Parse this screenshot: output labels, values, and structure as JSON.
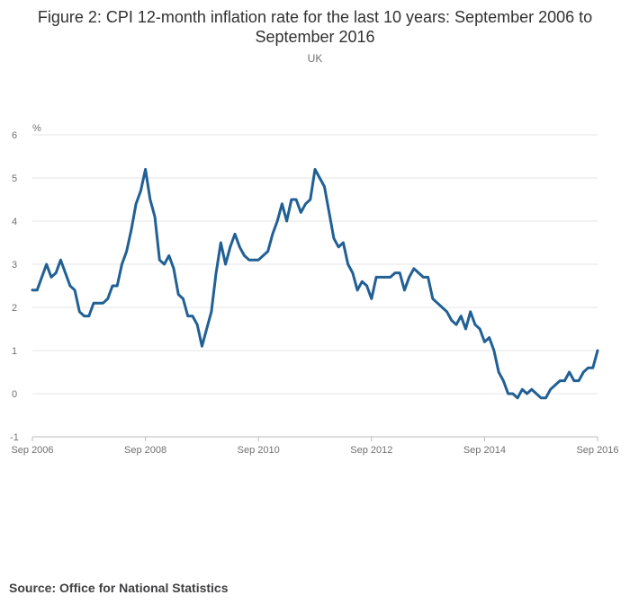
{
  "title": "Figure 2: CPI 12-month inflation rate for the last 10 years: September 2006 to September 2016",
  "subtitle": "UK",
  "source": "Source: Office for National Statistics",
  "colors": {
    "series": "#206095",
    "grid": "#e6e6e6",
    "axis": "#bdbdbd"
  },
  "chart_data": {
    "type": "line",
    "title": "Figure 2: CPI 12-month inflation rate for the last 10 years: September 2006 to September 2016",
    "subtitle": "UK",
    "ylabel": "%",
    "ylim": [
      -1,
      6
    ],
    "yticks": [
      -1,
      0,
      1,
      2,
      3,
      4,
      5,
      6
    ],
    "xticks": [
      "Sep 2006",
      "Sep 2008",
      "Sep 2010",
      "Sep 2012",
      "Sep 2014",
      "Sep 2016"
    ],
    "x_start": "2006-09",
    "x_end": "2016-09",
    "grid": true,
    "series": [
      {
        "values": [
          2.4,
          2.4,
          2.7,
          3.0,
          2.7,
          2.8,
          3.1,
          2.8,
          2.5,
          2.4,
          1.9,
          1.8,
          1.8,
          2.1,
          2.1,
          2.1,
          2.2,
          2.5,
          2.5,
          3.0,
          3.3,
          3.8,
          4.4,
          4.7,
          5.2,
          4.5,
          4.1,
          3.1,
          3.0,
          3.2,
          2.9,
          2.3,
          2.2,
          1.8,
          1.8,
          1.6,
          1.1,
          1.5,
          1.9,
          2.8,
          3.5,
          3.0,
          3.4,
          3.7,
          3.4,
          3.2,
          3.1,
          3.1,
          3.1,
          3.2,
          3.3,
          3.7,
          4.0,
          4.4,
          4.0,
          4.5,
          4.5,
          4.2,
          4.4,
          4.5,
          5.2,
          5.0,
          4.8,
          4.2,
          3.6,
          3.4,
          3.5,
          3.0,
          2.8,
          2.4,
          2.6,
          2.5,
          2.2,
          2.7,
          2.7,
          2.7,
          2.7,
          2.8,
          2.8,
          2.4,
          2.7,
          2.9,
          2.8,
          2.7,
          2.7,
          2.2,
          2.1,
          2.0,
          1.9,
          1.7,
          1.6,
          1.8,
          1.5,
          1.9,
          1.6,
          1.5,
          1.2,
          1.3,
          1.0,
          0.5,
          0.3,
          0.0,
          0.0,
          -0.1,
          0.1,
          0.0,
          0.1,
          0.0,
          -0.1,
          -0.1,
          0.1,
          0.2,
          0.3,
          0.3,
          0.5,
          0.3,
          0.3,
          0.5,
          0.6,
          0.6,
          1.0
        ]
      }
    ]
  }
}
